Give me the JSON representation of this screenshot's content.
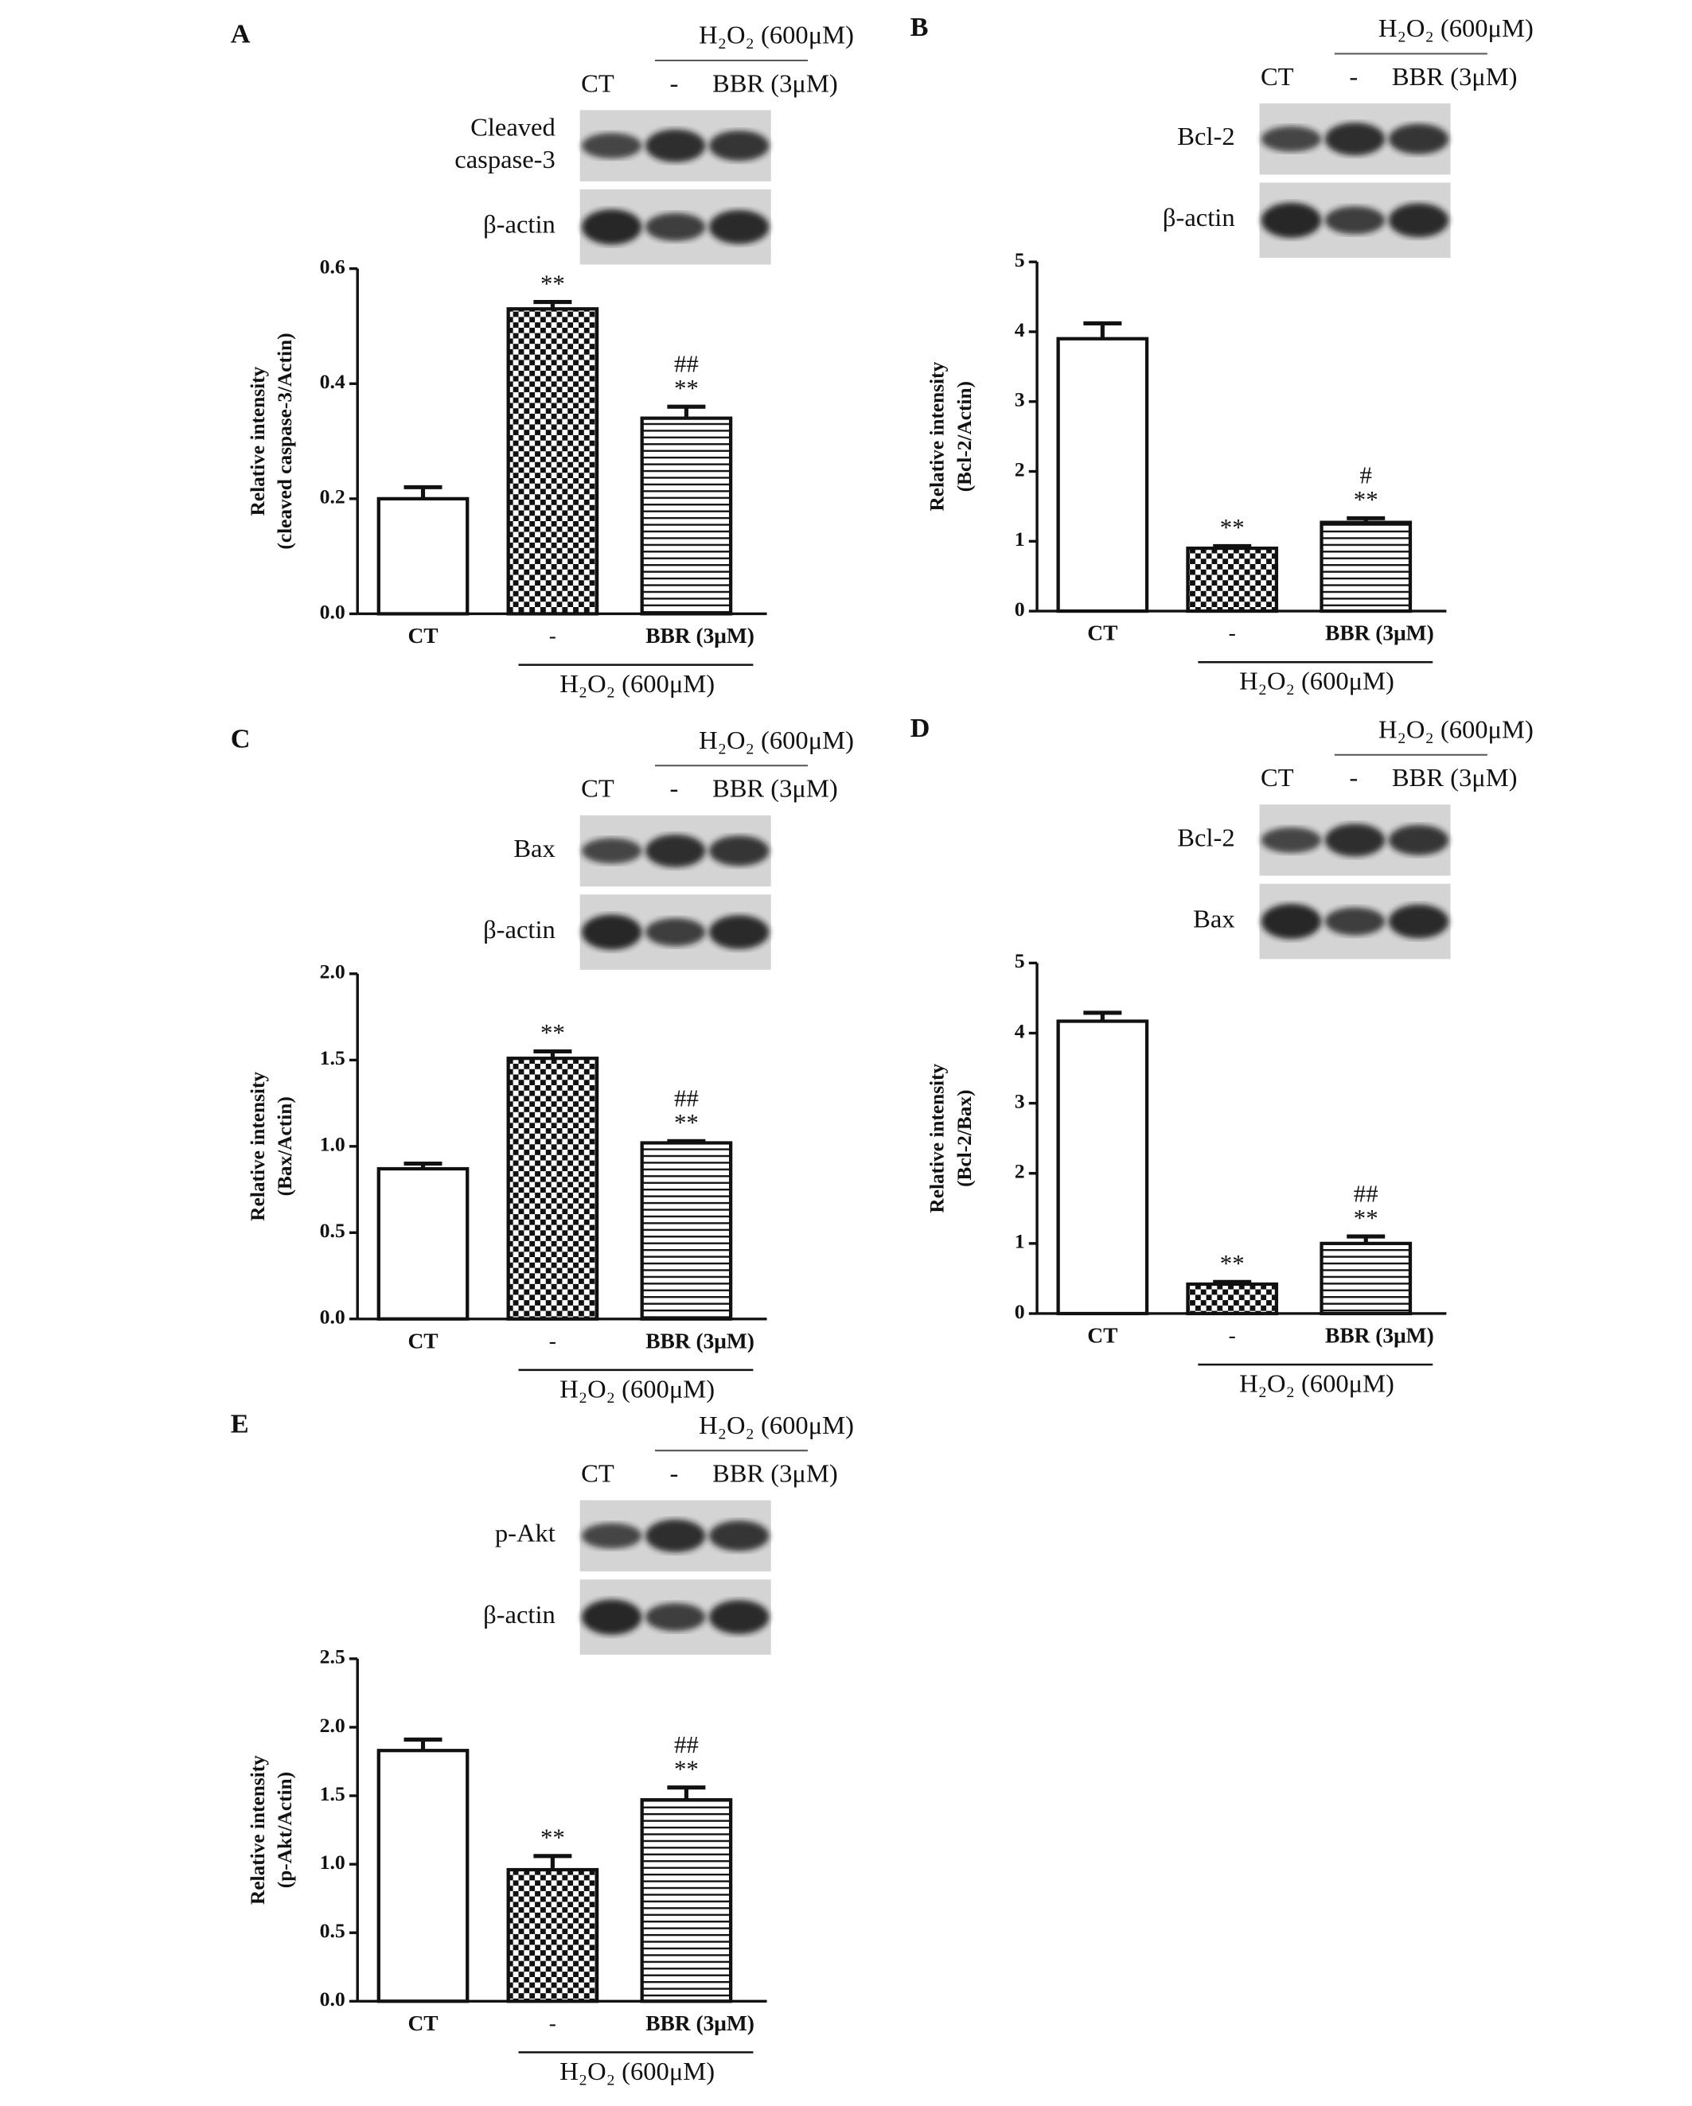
{
  "chart_data": [
    {
      "type": "bar",
      "panel": "A",
      "ylabel": [
        "Relative intensity",
        "(cleaved caspase-3/Actin)"
      ],
      "categories": [
        "CT",
        "-",
        "BBR (3μM)"
      ],
      "group_label": "H₂O₂ (600μM)",
      "values": [
        0.2,
        0.53,
        0.34
      ],
      "errors": [
        0.02,
        0.012,
        0.02
      ],
      "annotations": [
        [],
        [
          "**"
        ],
        [
          "##",
          "**"
        ]
      ],
      "patterns": [
        "none",
        "checkerboard",
        "horizontal-lines"
      ],
      "ylim": [
        0,
        0.6
      ],
      "yticks": [
        {
          "value": 0,
          "label": "0.0"
        },
        0.2,
        0.4,
        0.6
      ],
      "blot": {
        "header": "H₂O₂ (600μM)",
        "lanes": [
          "CT",
          "-",
          "BBR (3μM)"
        ],
        "rows": [
          [
            "Cleaved",
            "caspase-3"
          ],
          [
            "β-actin"
          ]
        ]
      }
    },
    {
      "type": "bar",
      "panel": "B",
      "ylabel": [
        "Relative intensity",
        "(Bcl-2/Actin)"
      ],
      "categories": [
        "CT",
        "-",
        "BBR (3μM)"
      ],
      "group_label": "H₂O₂ (600μM)",
      "values": [
        3.9,
        0.9,
        1.27
      ],
      "errors": [
        0.22,
        0.03,
        0.06
      ],
      "annotations": [
        [],
        [
          "**"
        ],
        [
          "#",
          "**"
        ]
      ],
      "patterns": [
        "none",
        "checkerboard",
        "horizontal-lines"
      ],
      "ylim": [
        0,
        5
      ],
      "yticks": [
        0,
        1,
        2,
        3,
        4,
        5
      ],
      "blot": {
        "header": "H₂O₂ (600μM)",
        "lanes": [
          "CT",
          "-",
          "BBR (3μM)"
        ],
        "rows": [
          [
            "Bcl-2"
          ],
          [
            "β-actin"
          ]
        ]
      }
    },
    {
      "type": "bar",
      "panel": "C",
      "ylabel": [
        "Relative intensity",
        "(Bax/Actin)"
      ],
      "categories": [
        "CT",
        "-",
        "BBR (3μM)"
      ],
      "group_label": "H₂O₂ (600μM)",
      "values": [
        0.87,
        1.51,
        1.02
      ],
      "errors": [
        0.03,
        0.04,
        0.01
      ],
      "annotations": [
        [],
        [
          "**"
        ],
        [
          "##",
          "**"
        ]
      ],
      "patterns": [
        "none",
        "checkerboard",
        "horizontal-lines"
      ],
      "ylim": [
        0,
        2
      ],
      "yticks": [
        {
          "value": 0,
          "label": "0.0"
        },
        0.5,
        {
          "value": 1,
          "label": "1.0"
        },
        1.5,
        {
          "value": 2,
          "label": "2.0"
        }
      ],
      "blot": {
        "header": "H₂O₂ (600μM)",
        "lanes": [
          "CT",
          "-",
          "BBR (3μM)"
        ],
        "rows": [
          [
            "Bax"
          ],
          [
            "β-actin"
          ]
        ]
      }
    },
    {
      "type": "bar",
      "panel": "D",
      "ylabel": [
        "Relative intensity",
        "(Bcl-2/Bax)"
      ],
      "categories": [
        "CT",
        "-",
        "BBR (3μM)"
      ],
      "group_label": "H₂O₂ (600μM)",
      "values": [
        4.17,
        0.42,
        1.0
      ],
      "errors": [
        0.12,
        0.03,
        0.1
      ],
      "annotations": [
        [],
        [
          "**"
        ],
        [
          "##",
          "**"
        ]
      ],
      "patterns": [
        "none",
        "checkerboard",
        "horizontal-lines"
      ],
      "ylim": [
        0,
        5
      ],
      "yticks": [
        0,
        1,
        2,
        3,
        4,
        5
      ],
      "blot": {
        "header": "H₂O₂ (600μM)",
        "lanes": [
          "CT",
          "-",
          "BBR (3μM)"
        ],
        "rows": [
          [
            "Bcl-2"
          ],
          [
            "Bax"
          ]
        ]
      }
    },
    {
      "type": "bar",
      "panel": "E",
      "ylabel": [
        "Relative intensity",
        "(p-Akt/Actin)"
      ],
      "categories": [
        "CT",
        "-",
        "BBR (3μM)"
      ],
      "group_label": "H₂O₂ (600μM)",
      "values": [
        1.83,
        0.96,
        1.47
      ],
      "errors": [
        0.08,
        0.1,
        0.09
      ],
      "annotations": [
        [],
        [
          "**"
        ],
        [
          "##",
          "**"
        ]
      ],
      "patterns": [
        "none",
        "checkerboard",
        "horizontal-lines"
      ],
      "ylim": [
        0,
        2.5
      ],
      "yticks": [
        {
          "value": 0,
          "label": "0.0"
        },
        0.5,
        {
          "value": 1,
          "label": "1.0"
        },
        1.5,
        {
          "value": 2,
          "label": "2.0"
        },
        2.5
      ],
      "blot": {
        "header": "H₂O₂ (600μM)",
        "lanes": [
          "CT",
          "-",
          "BBR (3μM)"
        ],
        "rows": [
          [
            "p-Akt"
          ],
          [
            "β-actin"
          ]
        ]
      }
    }
  ]
}
